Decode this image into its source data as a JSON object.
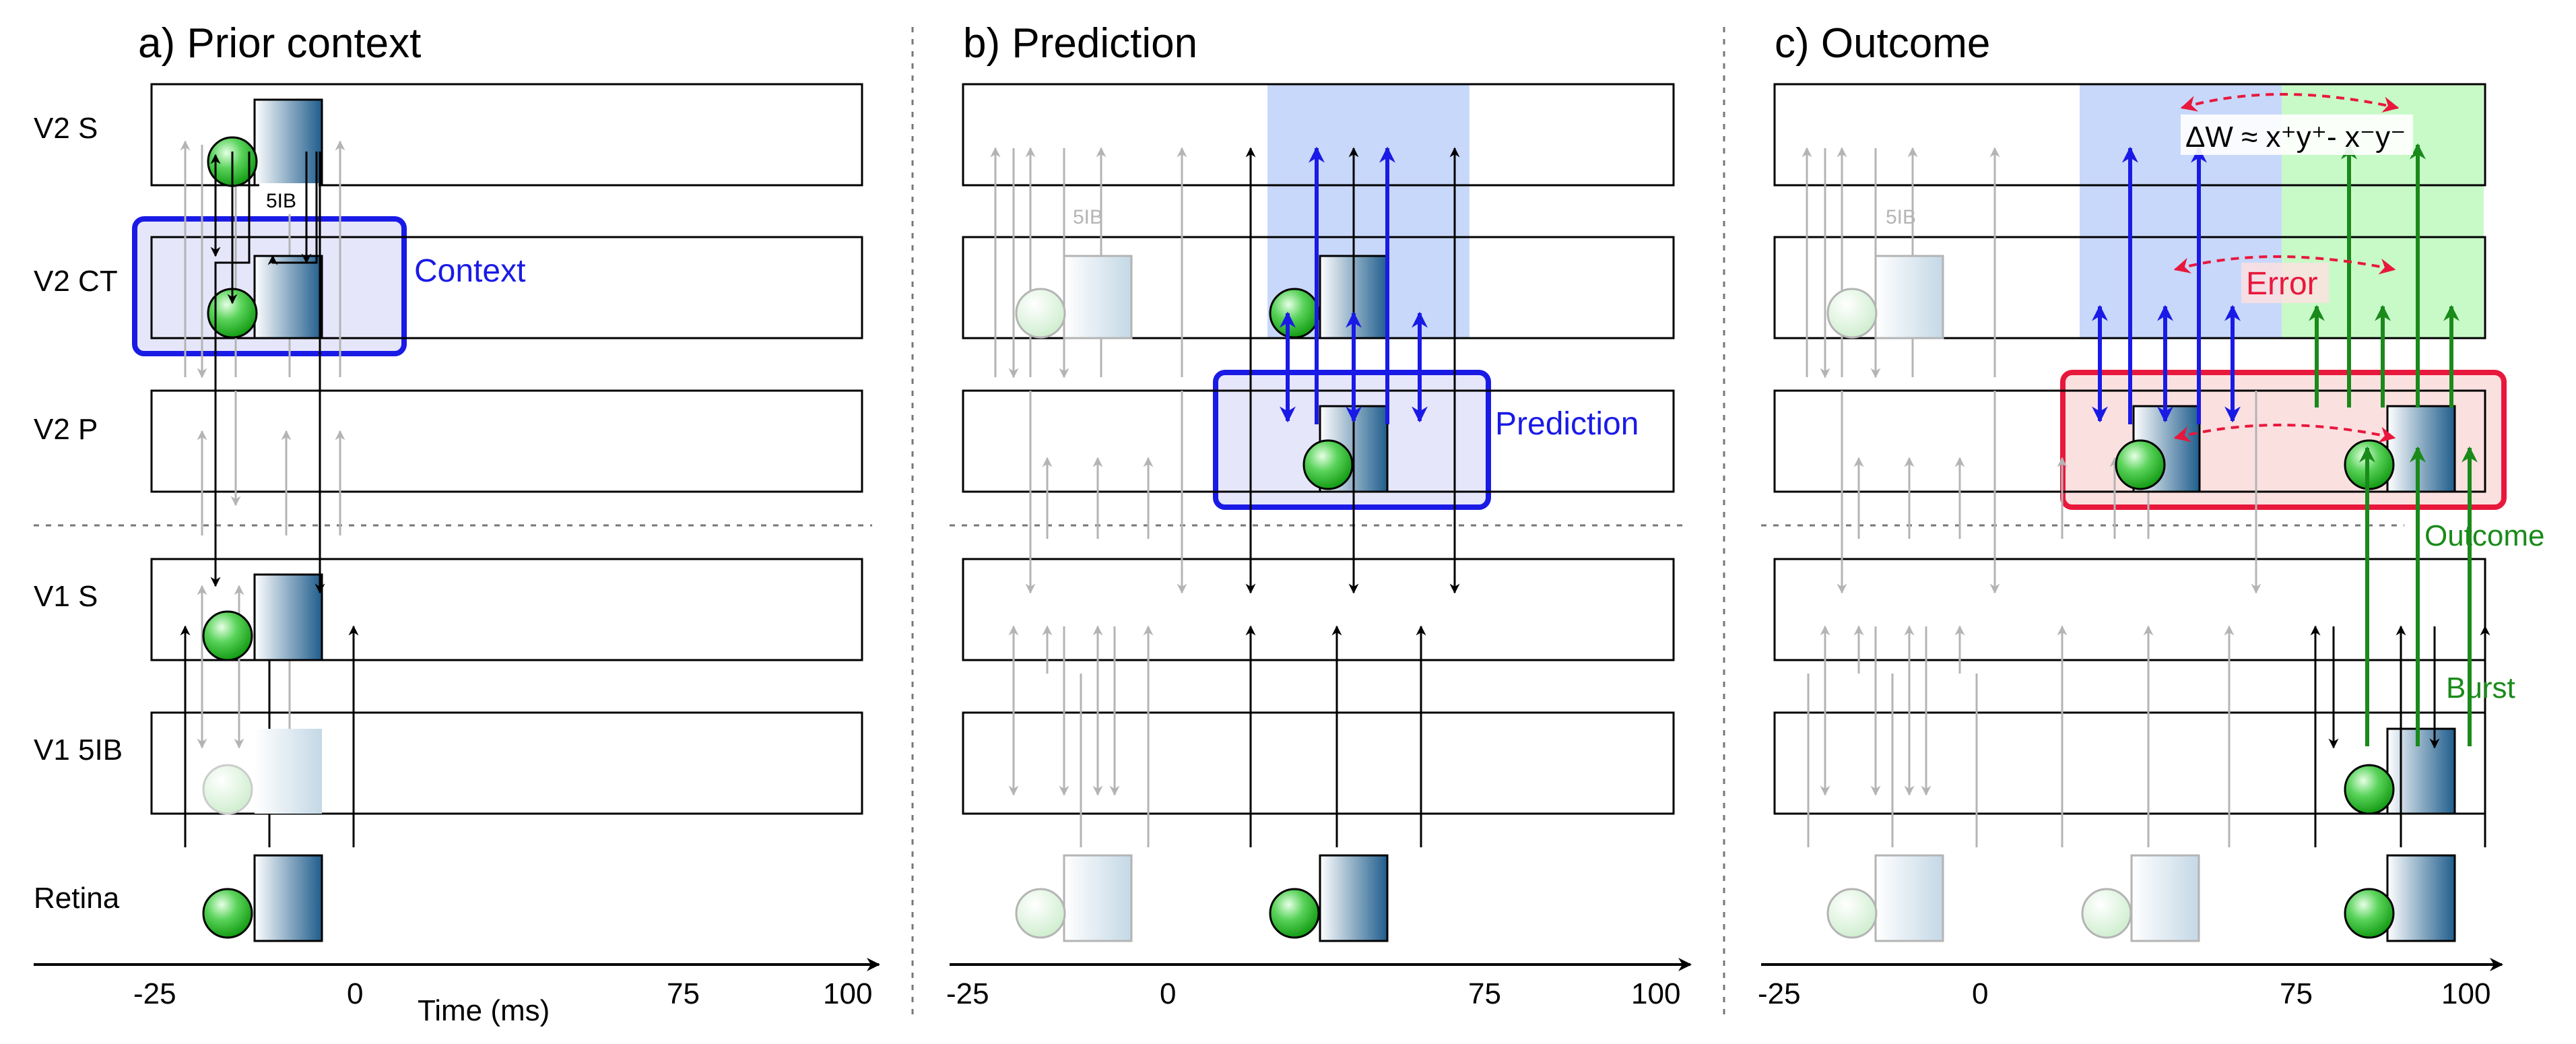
{
  "panels": [
    {
      "title": "a) Prior context",
      "ticks": [
        "-25",
        "0",
        "75",
        "100"
      ],
      "xlabel": "Time (ms)",
      "annotation": "Context"
    },
    {
      "title": "b) Prediction",
      "ticks": [
        "-25",
        "0",
        "75",
        "100"
      ],
      "xlabel": "",
      "annotation": "Prediction"
    },
    {
      "title": "c) Outcome",
      "ticks": [
        "-25",
        "0",
        "75",
        "100"
      ],
      "xlabel": "",
      "annotation": "Error",
      "outcome_label": "Outcome",
      "burst_label": "Burst",
      "equation": "ΔW ≈ x⁺y⁺- x⁻y⁻"
    }
  ],
  "layers": [
    "V2 S",
    "V2 CT",
    "V2 P",
    "V1 S",
    "V1 5IB",
    "Retina"
  ],
  "tag_5ib": "5IB",
  "colors": {
    "context_blue": "#1a1ae6",
    "prediction_blue": "#1a1ae6",
    "outcome_green": "#1a8a1a",
    "error_red": "#e8183c",
    "gray_arrow": "#b4b4b4",
    "shade_blue": "#c8d8fa",
    "shade_green": "#c8fac8"
  }
}
